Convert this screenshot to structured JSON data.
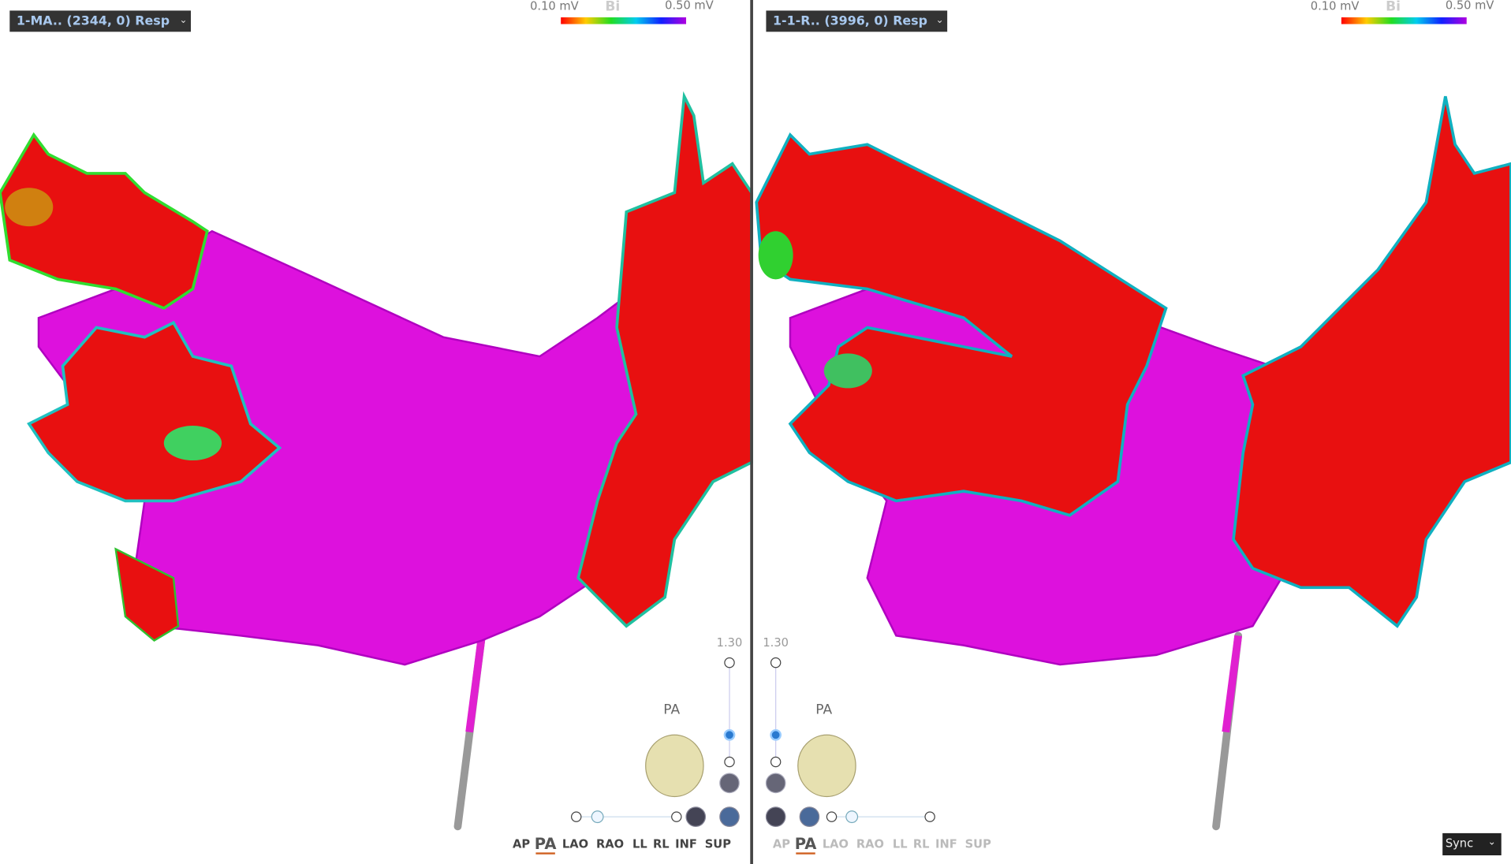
{
  "panels": [
    {
      "dropdown": "1-MA.. (2344, 0) Resp",
      "scale": {
        "min": "0.10 mV",
        "mode": "Bi",
        "max": "0.50 mV"
      },
      "zoom": "1.30",
      "view": "PA",
      "view_buttons": [
        "AP",
        "PA",
        "LAO",
        "RAO",
        "LL",
        "RL",
        "INF",
        "SUP"
      ]
    },
    {
      "dropdown": "1-1-R.. (3996, 0) Resp",
      "scale": {
        "min": "0.10 mV",
        "mode": "Bi",
        "max": "0.50 mV"
      },
      "zoom": "1.30",
      "view": "PA",
      "view_buttons": [
        "AP",
        "PA",
        "LAO",
        "RAO",
        "LL",
        "RL",
        "INF",
        "SUP"
      ]
    }
  ],
  "sync": "Sync"
}
